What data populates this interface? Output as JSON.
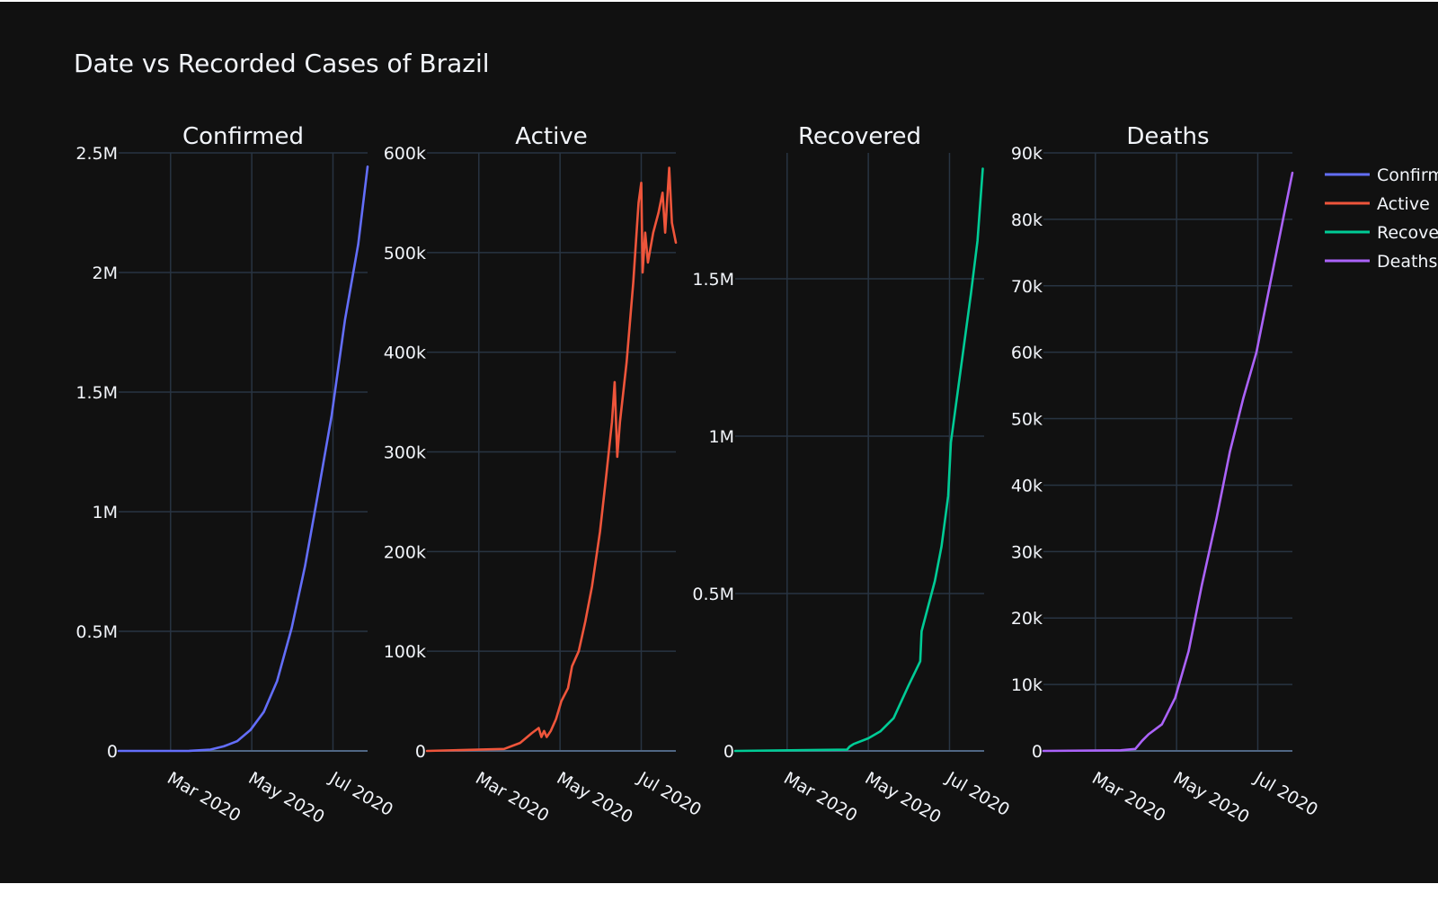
{
  "chart_data": [
    {
      "type": "line",
      "subtitle": "Confirmed",
      "name": "Confirmed",
      "color": "#636efa",
      "ylim": [
        0,
        2500000
      ],
      "yticks": [
        0,
        500000,
        1000000,
        1500000,
        2000000,
        2500000
      ],
      "ytick_labels": [
        "0",
        "0.5M",
        "1M",
        "1.5M",
        "2M",
        "2.5M"
      ],
      "xticks": [
        "2020-03-01",
        "2020-05-01",
        "2020-07-01"
      ],
      "xtick_labels": [
        "Mar 2020",
        "May 2020",
        "Jul 2020"
      ],
      "points": [
        [
          "2020-01-22",
          0
        ],
        [
          "2020-02-26",
          1
        ],
        [
          "2020-03-15",
          200
        ],
        [
          "2020-03-31",
          5700
        ],
        [
          "2020-04-10",
          19000
        ],
        [
          "2020-04-20",
          40700
        ],
        [
          "2020-04-30",
          87200
        ],
        [
          "2020-05-10",
          162700
        ],
        [
          "2020-05-20",
          291600
        ],
        [
          "2020-05-31",
          514800
        ],
        [
          "2020-06-10",
          772400
        ],
        [
          "2020-06-20",
          1083300
        ],
        [
          "2020-06-30",
          1402000
        ],
        [
          "2020-07-10",
          1800800
        ],
        [
          "2020-07-20",
          2118600
        ],
        [
          "2020-07-27",
          2442375
        ]
      ]
    },
    {
      "type": "line",
      "subtitle": "Active",
      "name": "Active",
      "color": "#ef553b",
      "ylim": [
        0,
        600000
      ],
      "yticks": [
        0,
        100000,
        200000,
        300000,
        400000,
        500000,
        600000
      ],
      "ytick_labels": [
        "0",
        "100k",
        "200k",
        "300k",
        "400k",
        "500k",
        "600k"
      ],
      "xticks": [
        "2020-03-01",
        "2020-05-01",
        "2020-07-01"
      ],
      "xtick_labels": [
        "Mar 2020",
        "May 2020",
        "Jul 2020"
      ],
      "points": [
        [
          "2020-01-22",
          0
        ],
        [
          "2020-03-20",
          2000
        ],
        [
          "2020-04-01",
          8000
        ],
        [
          "2020-04-10",
          18000
        ],
        [
          "2020-04-15",
          23000
        ],
        [
          "2020-04-17",
          14000
        ],
        [
          "2020-04-19",
          20000
        ],
        [
          "2020-04-21",
          14000
        ],
        [
          "2020-04-24",
          20000
        ],
        [
          "2020-04-28",
          32000
        ],
        [
          "2020-05-02",
          50000
        ],
        [
          "2020-05-07",
          63000
        ],
        [
          "2020-05-10",
          85000
        ],
        [
          "2020-05-15",
          100000
        ],
        [
          "2020-05-20",
          130000
        ],
        [
          "2020-05-25",
          165000
        ],
        [
          "2020-05-31",
          220000
        ],
        [
          "2020-06-05",
          280000
        ],
        [
          "2020-06-09",
          330000
        ],
        [
          "2020-06-11",
          370000
        ],
        [
          "2020-06-13",
          295000
        ],
        [
          "2020-06-15",
          330000
        ],
        [
          "2020-06-20",
          390000
        ],
        [
          "2020-06-25",
          470000
        ],
        [
          "2020-06-29",
          550000
        ],
        [
          "2020-07-01",
          570000
        ],
        [
          "2020-07-02",
          480000
        ],
        [
          "2020-07-04",
          520000
        ],
        [
          "2020-07-06",
          490000
        ],
        [
          "2020-07-10",
          520000
        ],
        [
          "2020-07-14",
          540000
        ],
        [
          "2020-07-17",
          560000
        ],
        [
          "2020-07-19",
          520000
        ],
        [
          "2020-07-22",
          585000
        ],
        [
          "2020-07-24",
          530000
        ],
        [
          "2020-07-27",
          510000
        ]
      ]
    },
    {
      "type": "line",
      "subtitle": "Recovered",
      "name": "Recovered",
      "color": "#00cc96",
      "ylim": [
        0,
        1900000
      ],
      "yticks": [
        0,
        500000,
        1000000,
        1500000
      ],
      "ytick_labels": [
        "0",
        "0.5M",
        "1M",
        "1.5M"
      ],
      "xticks": [
        "2020-03-01",
        "2020-05-01",
        "2020-07-01"
      ],
      "xtick_labels": [
        "Mar 2020",
        "May 2020",
        "Jul 2020"
      ],
      "points": [
        [
          "2020-01-22",
          0
        ],
        [
          "2020-04-15",
          4000
        ],
        [
          "2020-04-17",
          14000
        ],
        [
          "2020-04-20",
          22000
        ],
        [
          "2020-05-01",
          40000
        ],
        [
          "2020-05-10",
          62000
        ],
        [
          "2020-05-20",
          104000
        ],
        [
          "2020-05-31",
          206000
        ],
        [
          "2020-06-09",
          285000
        ],
        [
          "2020-06-10",
          380000
        ],
        [
          "2020-06-15",
          460000
        ],
        [
          "2020-06-20",
          540000
        ],
        [
          "2020-06-25",
          650000
        ],
        [
          "2020-06-30",
          810000
        ],
        [
          "2020-07-02",
          980000
        ],
        [
          "2020-07-10",
          1230000
        ],
        [
          "2020-07-17",
          1450000
        ],
        [
          "2020-07-22",
          1620000
        ],
        [
          "2020-07-26",
          1850000
        ]
      ]
    },
    {
      "type": "line",
      "subtitle": "Deaths",
      "name": "Deaths",
      "color": "#ab63fa",
      "ylim": [
        0,
        90000
      ],
      "yticks": [
        0,
        10000,
        20000,
        30000,
        40000,
        50000,
        60000,
        70000,
        80000,
        90000
      ],
      "ytick_labels": [
        "0",
        "10k",
        "20k",
        "30k",
        "40k",
        "50k",
        "60k",
        "70k",
        "80k",
        "90k"
      ],
      "xticks": [
        "2020-03-01",
        "2020-05-01",
        "2020-07-01"
      ],
      "xtick_labels": [
        "Mar 2020",
        "May 2020",
        "Jul 2020"
      ],
      "points": [
        [
          "2020-01-22",
          0
        ],
        [
          "2020-03-20",
          100
        ],
        [
          "2020-03-31",
          300
        ],
        [
          "2020-04-05",
          1500
        ],
        [
          "2020-04-10",
          2500
        ],
        [
          "2020-04-20",
          4000
        ],
        [
          "2020-04-30",
          8000
        ],
        [
          "2020-05-10",
          15000
        ],
        [
          "2020-05-20",
          25000
        ],
        [
          "2020-05-31",
          35000
        ],
        [
          "2020-06-10",
          45000
        ],
        [
          "2020-06-20",
          53000
        ],
        [
          "2020-06-30",
          60000
        ],
        [
          "2020-07-10",
          70000
        ],
        [
          "2020-07-20",
          80000
        ],
        [
          "2020-07-27",
          87000
        ]
      ]
    }
  ],
  "title": "Date vs Recorded Cases of Brazil",
  "legend": [
    {
      "label": "Confirmed",
      "color": "#636efa"
    },
    {
      "label": "Active",
      "color": "#ef553b"
    },
    {
      "label": "Recovered",
      "color": "#00cc96"
    },
    {
      "label": "Deaths",
      "color": "#ab63fa"
    }
  ]
}
